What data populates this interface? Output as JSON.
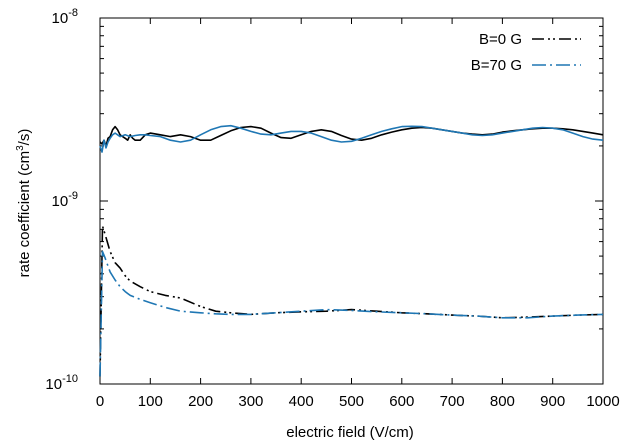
{
  "chart_data": {
    "type": "line",
    "xlabel": "electric field (V/cm)",
    "ylabel": {
      "prefix": "rate coefficient (cm",
      "sup": "3",
      "suffix": "/s)"
    },
    "xlim": [
      0,
      1000
    ],
    "ylim": [
      1e-10,
      1e-08
    ],
    "yscale": "log",
    "xticks": [
      0,
      100,
      200,
      300,
      400,
      500,
      600,
      700,
      800,
      900,
      1000
    ],
    "xtick_labels": [
      "0",
      "100",
      "200",
      "300",
      "400",
      "500",
      "600",
      "700",
      "800",
      "900",
      "1000"
    ],
    "yticks": [
      {
        "value": 1e-10,
        "base": "10",
        "exp": "-10"
      },
      {
        "value": 1e-09,
        "base": "10",
        "exp": "-9"
      },
      {
        "value": 1e-08,
        "base": "10",
        "exp": "-8"
      }
    ],
    "legend_position": "top-right",
    "colors": {
      "B0": "#000000",
      "B70": "#1f77b4"
    },
    "series": [
      {
        "name": "B=0 G",
        "legend": true,
        "color": "#000000",
        "dash": "dash-dot-dot",
        "x": [
          0,
          5,
          10,
          20,
          30,
          40,
          50,
          60,
          80,
          100,
          130,
          160,
          200,
          230,
          260,
          300,
          350,
          400,
          450,
          500,
          550,
          600,
          650,
          700,
          750,
          800,
          850,
          900,
          950,
          1000
        ],
        "y": [
          1.1e-10,
          7.3e-10,
          6.6e-10,
          5.3e-10,
          4.6e-10,
          4.3e-10,
          3.9e-10,
          3.65e-10,
          3.4e-10,
          3.2e-10,
          3.05e-10,
          2.95e-10,
          2.65e-10,
          2.5e-10,
          2.45e-10,
          2.4e-10,
          2.45e-10,
          2.48e-10,
          2.5e-10,
          2.55e-10,
          2.5e-10,
          2.45e-10,
          2.42e-10,
          2.38e-10,
          2.35e-10,
          2.3e-10,
          2.32e-10,
          2.35e-10,
          2.38e-10,
          2.4e-10
        ]
      },
      {
        "name": "B=70 G",
        "legend": true,
        "color": "#1f77b4",
        "dash": "dash-dot",
        "x": [
          0,
          5,
          10,
          20,
          30,
          40,
          50,
          60,
          80,
          100,
          130,
          160,
          200,
          230,
          260,
          300,
          350,
          400,
          450,
          500,
          550,
          600,
          650,
          700,
          750,
          800,
          850,
          900,
          950,
          1000
        ],
        "y": [
          1.1e-10,
          5.3e-10,
          4.9e-10,
          4.1e-10,
          3.7e-10,
          3.4e-10,
          3.2e-10,
          3.05e-10,
          2.9e-10,
          2.78e-10,
          2.62e-10,
          2.5e-10,
          2.45e-10,
          2.42e-10,
          2.4e-10,
          2.4e-10,
          2.45e-10,
          2.5e-10,
          2.55e-10,
          2.52e-10,
          2.48e-10,
          2.45e-10,
          2.42e-10,
          2.38e-10,
          2.35e-10,
          2.3e-10,
          2.3e-10,
          2.35e-10,
          2.38e-10,
          2.4e-10
        ]
      },
      {
        "legend": false,
        "color": "#000000",
        "dash": "solid",
        "x": [
          0,
          4,
          8,
          12,
          16,
          20,
          25,
          30,
          35,
          40,
          45,
          50,
          55,
          60,
          65,
          70,
          80,
          90,
          100,
          120,
          140,
          160,
          180,
          200,
          220,
          240,
          260,
          280,
          300,
          320,
          340,
          360,
          380,
          400,
          420,
          440,
          460,
          480,
          500,
          520,
          540,
          560,
          580,
          600,
          620,
          640,
          660,
          680,
          700,
          720,
          740,
          760,
          780,
          800,
          820,
          840,
          860,
          880,
          900,
          920,
          940,
          960,
          980,
          1000
        ],
        "y": [
          2.1e-09,
          2.05e-09,
          2.15e-09,
          2e-09,
          2.2e-09,
          2.25e-09,
          2.45e-09,
          2.55e-09,
          2.45e-09,
          2.3e-09,
          2.25e-09,
          2.2e-09,
          2.15e-09,
          2.3e-09,
          2.2e-09,
          2.15e-09,
          2.15e-09,
          2.3e-09,
          2.35e-09,
          2.3e-09,
          2.25e-09,
          2.3e-09,
          2.25e-09,
          2.15e-09,
          2.15e-09,
          2.28e-09,
          2.42e-09,
          2.52e-09,
          2.55e-09,
          2.5e-09,
          2.35e-09,
          2.22e-09,
          2.2e-09,
          2.3e-09,
          2.4e-09,
          2.45e-09,
          2.4e-09,
          2.28e-09,
          2.18e-09,
          2.15e-09,
          2.2e-09,
          2.3e-09,
          2.38e-09,
          2.45e-09,
          2.5e-09,
          2.52e-09,
          2.5e-09,
          2.45e-09,
          2.4e-09,
          2.35e-09,
          2.32e-09,
          2.3e-09,
          2.32e-09,
          2.38e-09,
          2.42e-09,
          2.45e-09,
          2.48e-09,
          2.5e-09,
          2.5e-09,
          2.48e-09,
          2.45e-09,
          2.4e-09,
          2.35e-09,
          2.3e-09
        ]
      },
      {
        "legend": false,
        "color": "#1f77b4",
        "dash": "solid",
        "x": [
          0,
          4,
          8,
          12,
          16,
          20,
          25,
          30,
          35,
          40,
          50,
          60,
          70,
          80,
          90,
          100,
          120,
          140,
          160,
          180,
          200,
          220,
          240,
          260,
          280,
          300,
          320,
          340,
          360,
          380,
          400,
          420,
          440,
          460,
          480,
          500,
          520,
          540,
          560,
          580,
          600,
          620,
          640,
          660,
          680,
          700,
          720,
          740,
          760,
          780,
          800,
          820,
          840,
          860,
          880,
          900,
          920,
          940,
          960,
          980,
          1000
        ],
        "y": [
          2e-09,
          1.85e-09,
          2.15e-09,
          1.95e-09,
          2.1e-09,
          2.2e-09,
          2.3e-09,
          2.35e-09,
          2.3e-09,
          2.25e-09,
          2.3e-09,
          2.25e-09,
          2.28e-09,
          2.3e-09,
          2.3e-09,
          2.28e-09,
          2.25e-09,
          2.15e-09,
          2.1e-09,
          2.15e-09,
          2.3e-09,
          2.45e-09,
          2.55e-09,
          2.58e-09,
          2.5e-09,
          2.4e-09,
          2.32e-09,
          2.3e-09,
          2.35e-09,
          2.4e-09,
          2.4e-09,
          2.35e-09,
          2.25e-09,
          2.15e-09,
          2.1e-09,
          2.12e-09,
          2.2e-09,
          2.3e-09,
          2.4e-09,
          2.48e-09,
          2.55e-09,
          2.56e-09,
          2.55e-09,
          2.5e-09,
          2.45e-09,
          2.4e-09,
          2.35e-09,
          2.3e-09,
          2.28e-09,
          2.3e-09,
          2.35e-09,
          2.4e-09,
          2.45e-09,
          2.5e-09,
          2.52e-09,
          2.5e-09,
          2.45e-09,
          2.35e-09,
          2.25e-09,
          2.18e-09,
          2.15e-09
        ]
      }
    ]
  }
}
